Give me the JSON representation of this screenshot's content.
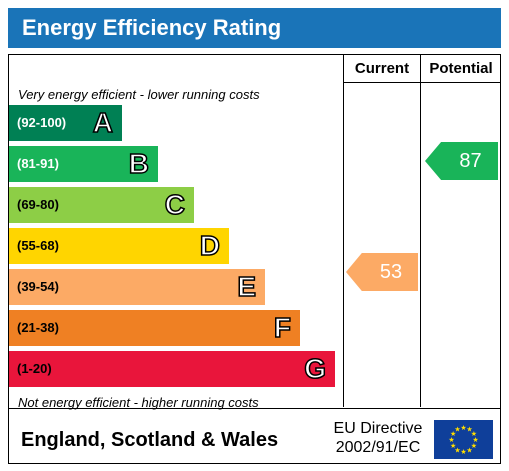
{
  "title": "Energy Efficiency Rating",
  "columns": {
    "current": "Current",
    "potential": "Potential"
  },
  "notes": {
    "top": "Very energy efficient - lower running costs",
    "bottom": "Not energy efficient - higher running costs"
  },
  "bands": [
    {
      "range": "(92-100)",
      "letter": "A",
      "color": "#008054"
    },
    {
      "range": "(81-91)",
      "letter": "B",
      "color": "#19b459"
    },
    {
      "range": "(69-80)",
      "letter": "C",
      "color": "#8dce46"
    },
    {
      "range": "(55-68)",
      "letter": "D",
      "color": "#ffd500"
    },
    {
      "range": "(39-54)",
      "letter": "E",
      "color": "#fcaa65"
    },
    {
      "range": "(21-38)",
      "letter": "F",
      "color": "#ef8023"
    },
    {
      "range": "(1-20)",
      "letter": "G",
      "color": "#e9153b"
    }
  ],
  "current": {
    "value": "53",
    "band": "E",
    "color": "#fcaa65"
  },
  "potential": {
    "value": "87",
    "band": "B",
    "color": "#19b459"
  },
  "footer": {
    "region": "England, Scotland & Wales",
    "directive_line1": "EU Directive",
    "directive_line2": "2002/91/EC",
    "flag_icon": "eu-flag-icon"
  }
}
